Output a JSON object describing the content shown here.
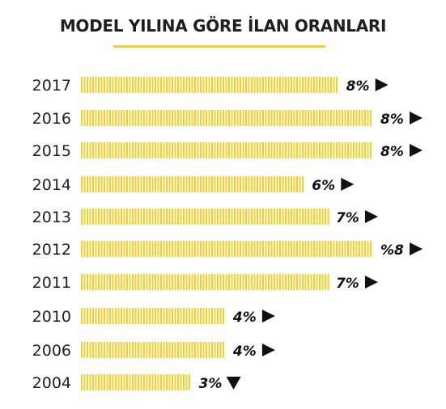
{
  "chart_data": {
    "type": "bar",
    "orientation": "horizontal",
    "title": "MODEL YILINA GÖRE İLAN ORANLARI",
    "categories": [
      "2017",
      "2016",
      "2015",
      "2014",
      "2013",
      "2012",
      "2011",
      "2010",
      "2006",
      "2004"
    ],
    "values": [
      7.5,
      8.5,
      8.5,
      6.5,
      7.2,
      8.5,
      7.2,
      4.2,
      4.2,
      3.2
    ],
    "value_labels": [
      "8%",
      "8%",
      "8%",
      "6%",
      "7%",
      "%8",
      "7%",
      "4%",
      "4%",
      "3%"
    ],
    "trend_icons": [
      "arrow-right",
      "arrow-right",
      "arrow-right",
      "arrow-right",
      "arrow-right",
      "arrow-right",
      "arrow-right",
      "arrow-right",
      "arrow-right",
      "arrow-down"
    ],
    "bar_color": "#f7cf2b",
    "xlim": [
      0,
      8.5
    ],
    "grid": false,
    "legend": "none"
  }
}
